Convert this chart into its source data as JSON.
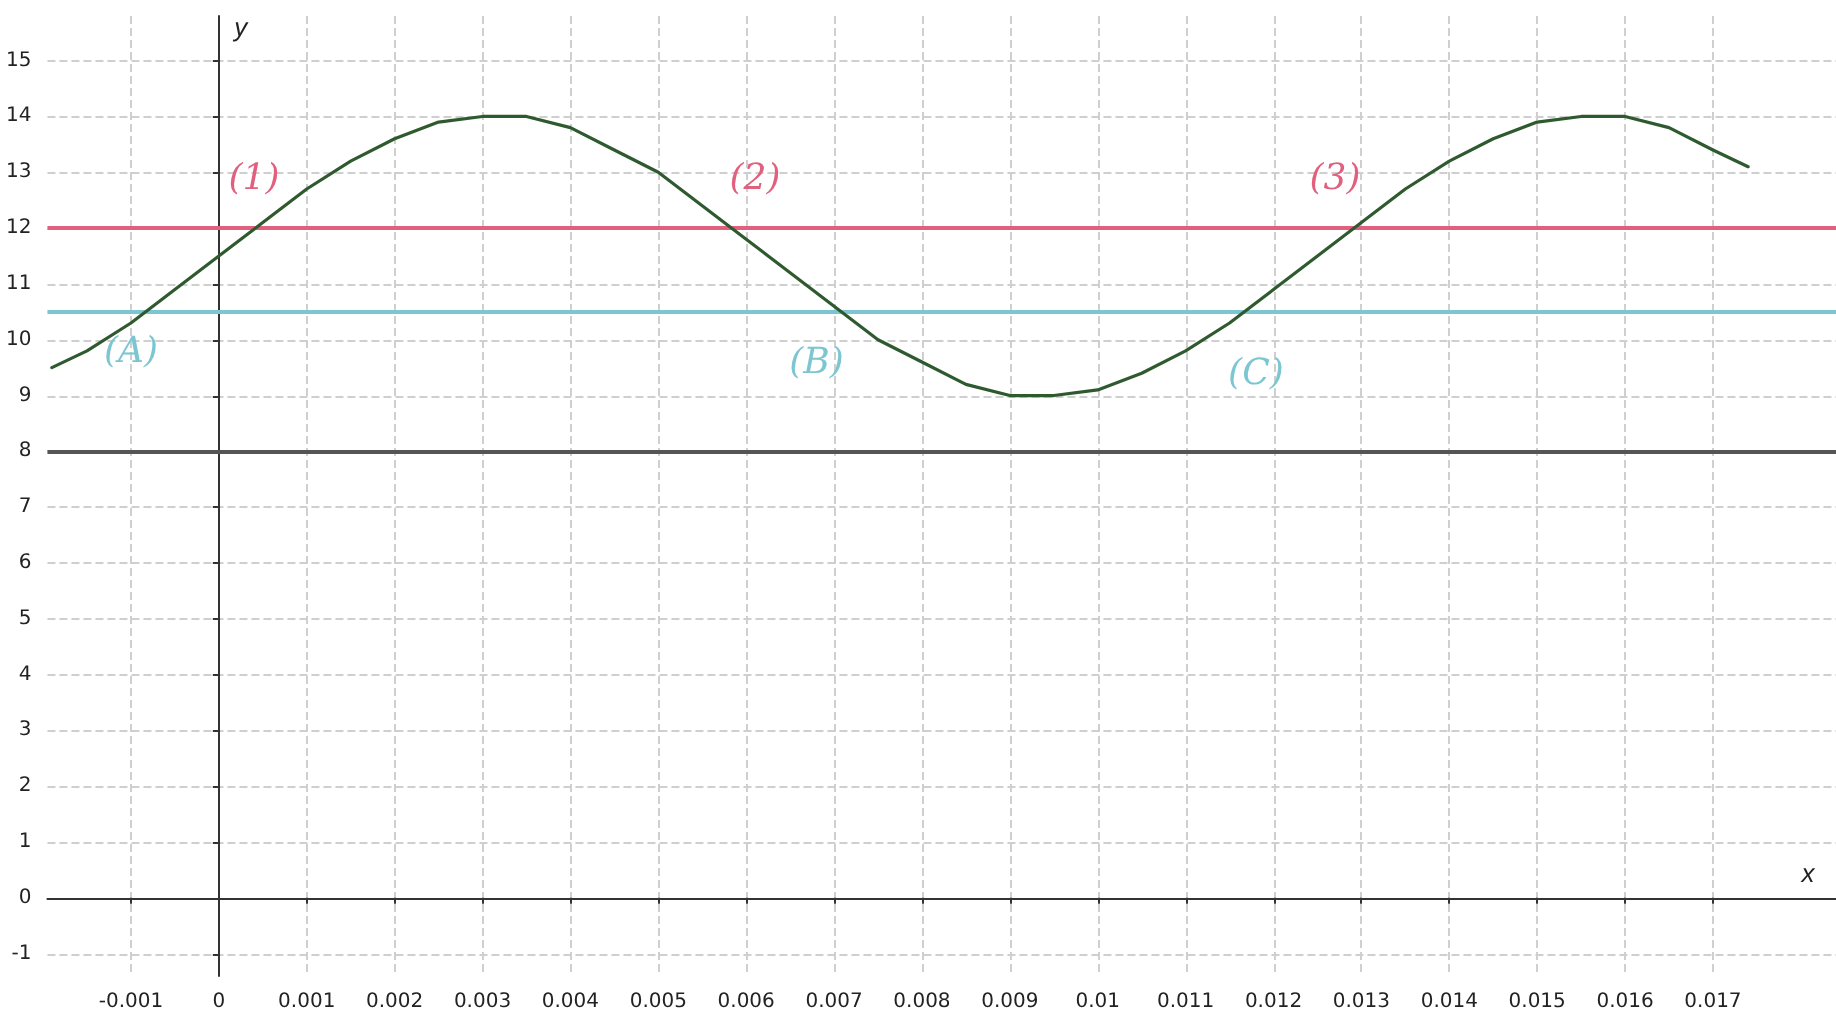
{
  "chart_data": {
    "type": "line",
    "xlabel": "x",
    "ylabel": "y",
    "x": [
      -0.0019,
      -0.0015,
      -0.001,
      -0.0005,
      0,
      0.0005,
      0.001,
      0.0015,
      0.002,
      0.0025,
      0.003,
      0.0035,
      0.004,
      0.0045,
      0.005,
      0.0055,
      0.006,
      0.0065,
      0.007,
      0.0075,
      0.008,
      0.0085,
      0.009,
      0.0095,
      0.01,
      0.0105,
      0.011,
      0.0115,
      0.012,
      0.0125,
      0.013,
      0.0135,
      0.014,
      0.0145,
      0.015,
      0.0155,
      0.016,
      0.0165,
      0.017,
      0.0174
    ],
    "series": [
      {
        "color": "#2f5a2f",
        "values": [
          9.5,
          9.8,
          10.3,
          10.9,
          11.5,
          12.1,
          12.7,
          13.2,
          13.6,
          13.9,
          14,
          14,
          13.8,
          13.4,
          13,
          12.4,
          11.8,
          11.2,
          10.6,
          10,
          9.6,
          9.2,
          9,
          9,
          9.1,
          9.4,
          9.8,
          10.3,
          10.9,
          11.5,
          12.1,
          12.7,
          13.2,
          13.6,
          13.9,
          14,
          14,
          13.8,
          13.4,
          13.1
        ]
      }
    ],
    "xlim": [
      -0.00195,
      0.0184
    ],
    "ylim": [
      -1.4,
      15.8
    ],
    "xticks": [
      -0.001,
      0,
      0.001,
      0.002,
      0.003,
      0.004,
      0.005,
      0.006,
      0.007,
      0.008,
      0.009,
      0.01,
      0.011,
      0.012,
      0.013,
      0.014,
      0.015,
      0.016,
      0.017
    ],
    "yticks": [
      -1,
      0,
      1,
      2,
      3,
      4,
      5,
      6,
      7,
      8,
      9,
      10,
      11,
      12,
      13,
      14,
      15
    ],
    "ref_lines": [
      {
        "axis": "y",
        "value": 12,
        "color": "#e0607e"
      },
      {
        "axis": "y",
        "value": 10.5,
        "color": "#7cc6d2"
      },
      {
        "axis": "y",
        "value": 8,
        "color": "#555555"
      }
    ],
    "annotations": [
      "(1)",
      "(2)",
      "(3)",
      "(A)",
      "(B)",
      "(C)"
    ],
    "grid": true,
    "marker": "none",
    "line_style": "solid"
  }
}
